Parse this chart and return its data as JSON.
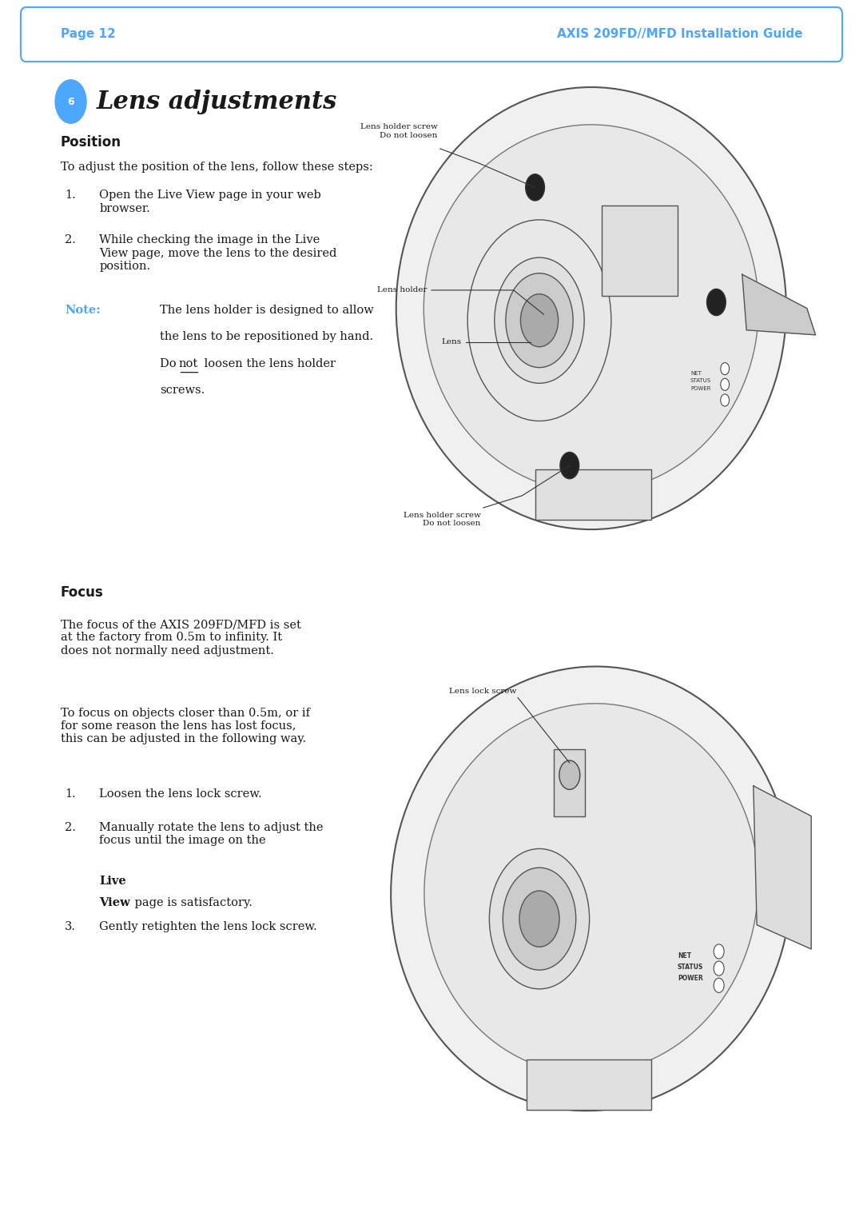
{
  "bg_color": "#ffffff",
  "header_text_left": "Page 12",
  "header_text_right": "AXIS 209FD//MFD Installation Guide",
  "blue_color": "#4da6ff",
  "section_number": "6",
  "section_title": "Lens adjustments",
  "position_title": "Position",
  "position_intro": "To adjust the position of the lens, follow these steps:",
  "position_step1": "Open the Live View page in your web\nbrowser.",
  "position_step2": "While checking the image in the Live\nView page, move the lens to the desired\nposition.",
  "note_label": "Note:",
  "note_line1": "The lens holder is designed to allow",
  "note_line2": "the lens to be repositioned by hand.",
  "note_line3a": "Do ",
  "note_line3b": "not",
  "note_line3c": " loosen the lens holder",
  "note_line4": "screws.",
  "diag1_label_screw_top": "Lens holder screw\nDo not loosen",
  "diag1_label_holder": "Lens holder",
  "diag1_label_lens": "Lens",
  "diag1_label_screw_bot": "Lens holder screw\nDo not loosen",
  "focus_title": "Focus",
  "focus_text1": "The focus of the AXIS 209FD/MFD is set\nat the factory from 0.5m to infinity. It\ndoes not normally need adjustment.",
  "focus_text2": "To focus on objects closer than 0.5m, or if\nfor some reason the lens has lost focus,\nthis can be adjusted in the following way.",
  "focus_step1": "Loosen the lens lock screw.",
  "focus_step2a": "Manually rotate the lens to adjust the\nfocus until the image on the ",
  "focus_step2b": "Live\nView",
  "focus_step2c": " page is satisfactory.",
  "focus_step3": "Gently retighten the lens lock screw.",
  "diag2_label_lock": "Lens lock screw",
  "text_color": "#1a1a1a"
}
